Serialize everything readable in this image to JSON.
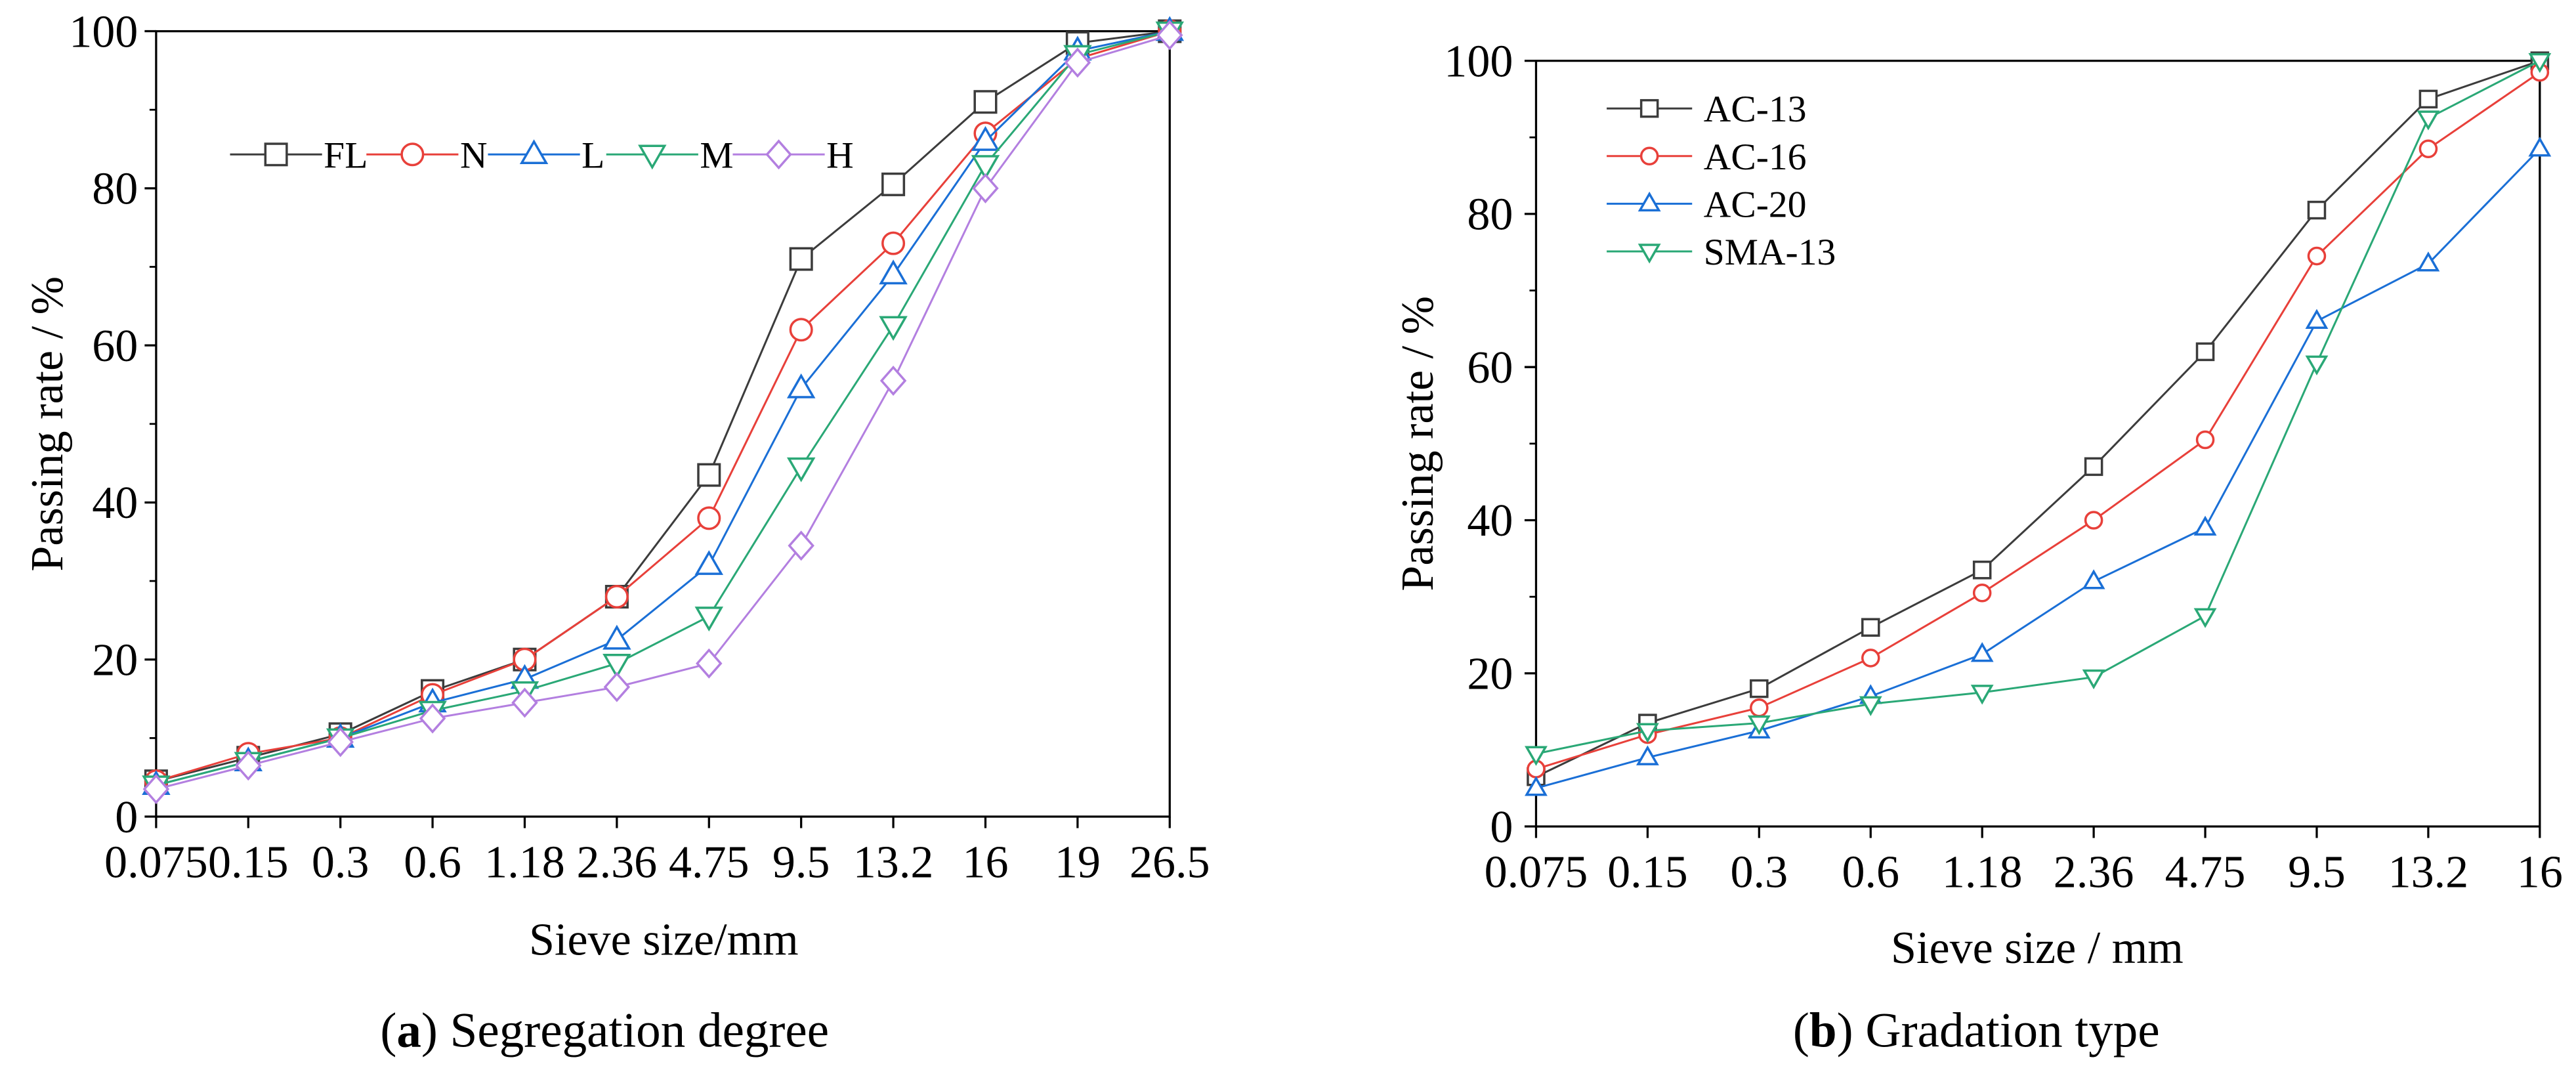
{
  "chart_data": [
    {
      "type": "line",
      "xlabel": "Sieve size/mm",
      "ylabel": "Passing rate / %",
      "ylim": [
        0,
        100
      ],
      "yticks": [
        "0",
        "20",
        "40",
        "60",
        "80",
        "100"
      ],
      "categories": [
        "0.075",
        "0.15",
        "0.3",
        "0.6",
        "1.18",
        "2.36",
        "4.75",
        "9.5",
        "13.2",
        "16",
        "19",
        "26.5"
      ],
      "series": [
        {
          "name": "FL",
          "color": "#3c3c3c",
          "values": [
            4.5,
            7.5,
            10.5,
            16,
            20,
            28,
            43.5,
            71,
            80.5,
            91,
            98.5,
            100
          ]
        },
        {
          "name": "N",
          "color": "#e8403a",
          "values": [
            4.5,
            8,
            10,
            15.5,
            20,
            28,
            38,
            62,
            73,
            87,
            96.5,
            100
          ]
        },
        {
          "name": "L",
          "color": "#1a6fd6",
          "values": [
            4,
            7,
            10,
            14.5,
            17.5,
            22.5,
            32,
            54.5,
            69,
            86,
            97.5,
            100
          ]
        },
        {
          "name": "M",
          "color": "#2aa876",
          "values": [
            4,
            7,
            10,
            13.5,
            16,
            19.5,
            25.5,
            44.5,
            62.5,
            83,
            97,
            100
          ]
        },
        {
          "name": "H",
          "color": "#b37fe0",
          "values": [
            3.5,
            6.5,
            9.5,
            12.5,
            14.5,
            16.5,
            19.5,
            34.5,
            55.5,
            80,
            96,
            99.5
          ]
        }
      ],
      "caption": {
        "open": "(",
        "letter": "a",
        "rest": ") Segregation degree"
      }
    },
    {
      "type": "line",
      "xlabel": "Sieve size / mm",
      "ylabel": "Passing rate / %",
      "ylim": [
        0,
        100
      ],
      "yticks": [
        "0",
        "20",
        "40",
        "60",
        "80",
        "100"
      ],
      "categories": [
        "0.075",
        "0.15",
        "0.3",
        "0.6",
        "1.18",
        "2.36",
        "4.75",
        "9.5",
        "13.2",
        "16"
      ],
      "series": [
        {
          "name": "AC-13",
          "color": "#3c3c3c",
          "values": [
            6.5,
            13.5,
            18,
            26,
            33.5,
            47,
            62,
            80.5,
            95,
            100
          ]
        },
        {
          "name": "AC-16",
          "color": "#e8403a",
          "values": [
            7.5,
            12,
            15.5,
            22,
            30.5,
            40,
            50.5,
            74.5,
            88.5,
            98.5
          ]
        },
        {
          "name": "AC-20",
          "color": "#1a6fd6",
          "values": [
            5,
            9,
            12.5,
            17,
            22.5,
            32,
            39,
            66,
            73.5,
            88.5
          ]
        },
        {
          "name": "SMA-13",
          "color": "#2aa876",
          "values": [
            9.5,
            12.5,
            13.5,
            16,
            17.5,
            19.5,
            27.5,
            60.5,
            92.5,
            100
          ]
        }
      ],
      "caption": {
        "open": "(",
        "letter": "b",
        "rest": ") Gradation type"
      }
    }
  ]
}
